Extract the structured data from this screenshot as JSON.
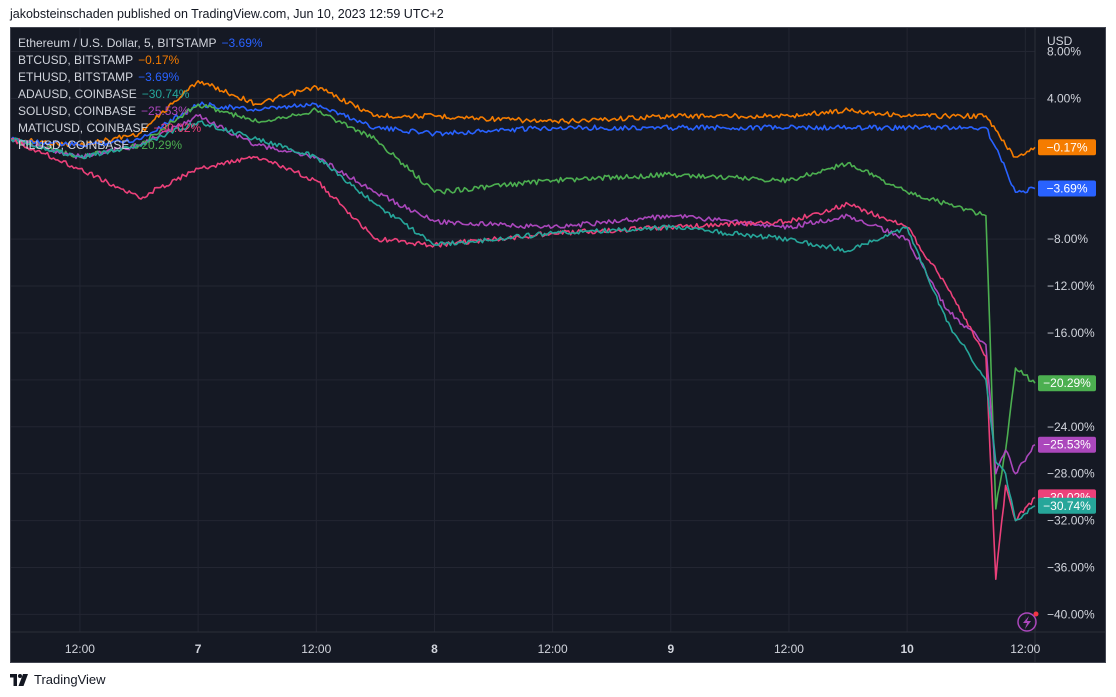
{
  "header": {
    "attribution": "jakobsteinschaden published on TradingView.com, Jun 10, 2023 12:59 UTC+2"
  },
  "footer": {
    "brand": "TradingView",
    "logo_icon": "tradingview-logo-icon"
  },
  "legend": [
    {
      "label": "Ethereum / U.S. Dollar, 5, BITSTAMP",
      "value": "−3.69%",
      "color": "#2962ff"
    },
    {
      "label": "BTCUSD, BITSTAMP",
      "value": "−0.17%",
      "color": "#f57c00"
    },
    {
      "label": "ETHUSD, BITSTAMP",
      "value": "−3.69%",
      "color": "#2962ff"
    },
    {
      "label": "ADAUSD, COINBASE",
      "value": "−30.74%",
      "color": "#26a69a"
    },
    {
      "label": "SOLUSD, COINBASE",
      "value": "−25.53%",
      "color": "#ab47bc"
    },
    {
      "label": "MATICUSD, COINBASE",
      "value": "−30.02%",
      "color": "#ec407a"
    },
    {
      "label": "FILUSD, COINBASE",
      "value": "−20.29%",
      "color": "#4caf50"
    }
  ],
  "price_tags": [
    {
      "label": "−0.17%",
      "value": -0.17,
      "color": "#f57c00"
    },
    {
      "label": "−3.69%",
      "value": -3.69,
      "color": "#2962ff"
    },
    {
      "label": "−20.29%",
      "value": -20.29,
      "color": "#4caf50"
    },
    {
      "label": "−25.53%",
      "value": -25.53,
      "color": "#ab47bc"
    },
    {
      "label": "−30.02%",
      "value": -30.02,
      "color": "#ec407a"
    },
    {
      "label": "−30.74%",
      "value": -30.74,
      "color": "#26a69a"
    }
  ],
  "chart_data": {
    "type": "line",
    "y_unit_label": "USD",
    "ylim": [
      -41.5,
      10
    ],
    "y_ticks": [
      {
        "value": 8,
        "label": "8.00%"
      },
      {
        "value": 4,
        "label": "4.00%"
      },
      {
        "value": -8,
        "label": "−8.00%"
      },
      {
        "value": -12,
        "label": "−12.00%"
      },
      {
        "value": -16,
        "label": "−16.00%"
      },
      {
        "value": -20,
        "label": "−20.00%"
      },
      {
        "value": -24,
        "label": "−24.00%"
      },
      {
        "value": -28,
        "label": "−28.00%"
      },
      {
        "value": -32,
        "label": "−32.00%"
      },
      {
        "value": -36,
        "label": "−36.00%"
      },
      {
        "value": -40,
        "label": "−40.00%"
      }
    ],
    "xlim": [
      "Jun 6 05:00",
      "Jun 10 12:59"
    ],
    "x_ticks": [
      {
        "value": "Jun 6 12:00",
        "label": "12:00",
        "bold": false
      },
      {
        "value": "Jun 7 00:00",
        "label": "7",
        "bold": true
      },
      {
        "value": "Jun 7 12:00",
        "label": "12:00",
        "bold": false
      },
      {
        "value": "Jun 8 00:00",
        "label": "8",
        "bold": true
      },
      {
        "value": "Jun 8 12:00",
        "label": "12:00",
        "bold": false
      },
      {
        "value": "Jun 9 00:00",
        "label": "9",
        "bold": true
      },
      {
        "value": "Jun 9 12:00",
        "label": "12:00",
        "bold": false
      },
      {
        "value": "Jun 10 00:00",
        "label": "10",
        "bold": true
      },
      {
        "value": "Jun 10 12:00",
        "label": "12:00",
        "bold": false
      }
    ],
    "grid": true,
    "legend_position": "top-left",
    "series": [
      {
        "name": "BTCUSD, BITSTAMP",
        "color": "#f57c00",
        "x": [
          "Jun 6 05:00",
          "Jun 6 12:00",
          "Jun 6 18:00",
          "Jun 7 00:00",
          "Jun 7 06:00",
          "Jun 7 12:00",
          "Jun 7 18:00",
          "Jun 8 00:00",
          "Jun 8 12:00",
          "Jun 9 00:00",
          "Jun 9 12:00",
          "Jun 9 18:00",
          "Jun 10 00:00",
          "Jun 10 08:00",
          "Jun 10 10:00",
          "Jun 10 11:00",
          "Jun 10 12:59"
        ],
        "y": [
          0.5,
          0,
          1,
          5.5,
          3.5,
          5,
          2.5,
          2.5,
          2,
          2.5,
          2.5,
          3,
          2.5,
          2.5,
          0,
          -1,
          -0.17
        ]
      },
      {
        "name": "ETHUSD, BITSTAMP",
        "color": "#2962ff",
        "x": [
          "Jun 6 05:00",
          "Jun 6 12:00",
          "Jun 6 18:00",
          "Jun 7 00:00",
          "Jun 7 06:00",
          "Jun 7 12:00",
          "Jun 7 18:00",
          "Jun 8 00:00",
          "Jun 8 12:00",
          "Jun 9 00:00",
          "Jun 9 12:00",
          "Jun 9 18:00",
          "Jun 10 00:00",
          "Jun 10 08:00",
          "Jun 10 10:00",
          "Jun 10 11:00",
          "Jun 10 12:59"
        ],
        "y": [
          0.5,
          0,
          0.5,
          3.5,
          3,
          3.5,
          1.5,
          1,
          1.5,
          1.5,
          1.5,
          1.5,
          1.5,
          1.5,
          -2,
          -4,
          -3.69
        ]
      },
      {
        "name": "FILUSD, COINBASE",
        "color": "#4caf50",
        "x": [
          "Jun 6 05:00",
          "Jun 6 12:00",
          "Jun 6 18:00",
          "Jun 7 00:00",
          "Jun 7 06:00",
          "Jun 7 12:00",
          "Jun 7 18:00",
          "Jun 8 00:00",
          "Jun 8 12:00",
          "Jun 9 00:00",
          "Jun 9 12:00",
          "Jun 9 18:00",
          "Jun 10 00:00",
          "Jun 10 08:00",
          "Jun 10 09:00",
          "Jun 10 10:00",
          "Jun 10 11:00",
          "Jun 10 12:59"
        ],
        "y": [
          0.5,
          -1,
          0,
          3.5,
          2,
          3,
          0.5,
          -4,
          -3,
          -2.5,
          -3,
          -1.5,
          -4,
          -6,
          -31,
          -26,
          -19,
          -20.29
        ]
      },
      {
        "name": "SOLUSD, COINBASE",
        "color": "#ab47bc",
        "x": [
          "Jun 6 05:00",
          "Jun 6 12:00",
          "Jun 6 18:00",
          "Jun 7 00:00",
          "Jun 7 06:00",
          "Jun 7 12:00",
          "Jun 7 18:00",
          "Jun 8 00:00",
          "Jun 8 12:00",
          "Jun 9 00:00",
          "Jun 9 12:00",
          "Jun 9 18:00",
          "Jun 10 00:00",
          "Jun 10 04:00",
          "Jun 10 08:00",
          "Jun 10 09:00",
          "Jun 10 10:00",
          "Jun 10 11:00",
          "Jun 10 12:59"
        ],
        "y": [
          0.5,
          -1,
          0,
          2.5,
          0,
          -1,
          -4,
          -6.5,
          -7,
          -6,
          -7,
          -6,
          -8,
          -14,
          -17,
          -28,
          -26,
          -28,
          -25.53
        ]
      },
      {
        "name": "MATICUSD, COINBASE",
        "color": "#ec407a",
        "x": [
          "Jun 6 05:00",
          "Jun 6 12:00",
          "Jun 6 18:00",
          "Jun 7 00:00",
          "Jun 7 06:00",
          "Jun 7 12:00",
          "Jun 7 18:00",
          "Jun 8 00:00",
          "Jun 8 12:00",
          "Jun 9 00:00",
          "Jun 9 12:00",
          "Jun 9 18:00",
          "Jun 10 00:00",
          "Jun 10 04:00",
          "Jun 10 08:00",
          "Jun 10 09:00",
          "Jun 10 10:00",
          "Jun 10 11:00",
          "Jun 10 12:59"
        ],
        "y": [
          0.5,
          -2,
          -4.5,
          -2,
          -1,
          -3,
          -8,
          -8.5,
          -7.5,
          -7,
          -6.5,
          -5,
          -7,
          -12,
          -18,
          -37,
          -29,
          -32,
          -30.02
        ]
      },
      {
        "name": "ADAUSD, COINBASE",
        "color": "#26a69a",
        "x": [
          "Jun 6 05:00",
          "Jun 6 12:00",
          "Jun 6 18:00",
          "Jun 7 00:00",
          "Jun 7 06:00",
          "Jun 7 12:00",
          "Jun 7 18:00",
          "Jun 8 00:00",
          "Jun 8 12:00",
          "Jun 9 00:00",
          "Jun 9 12:00",
          "Jun 9 18:00",
          "Jun 10 00:00",
          "Jun 10 04:00",
          "Jun 10 08:00",
          "Jun 10 09:00",
          "Jun 10 10:00",
          "Jun 10 11:00",
          "Jun 10 12:59"
        ],
        "y": [
          0.5,
          -1,
          0,
          2,
          0.5,
          -1,
          -5,
          -8.5,
          -7.5,
          -7,
          -8,
          -9,
          -7,
          -15,
          -20,
          -27,
          -28,
          -32,
          -30.74
        ]
      }
    ]
  }
}
